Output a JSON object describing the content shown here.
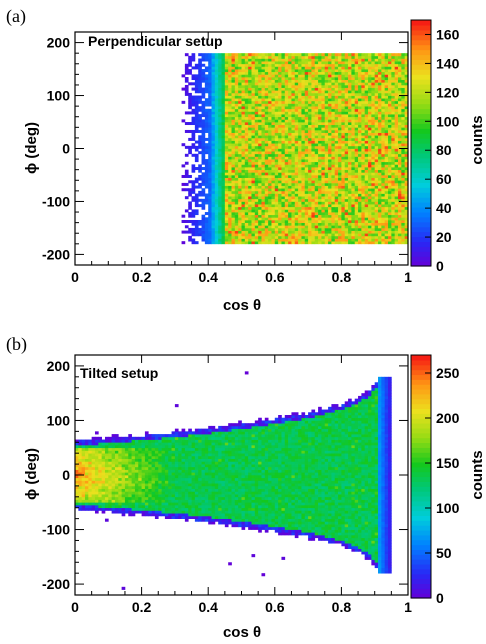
{
  "chart_data": [
    {
      "panel_label": "(a)",
      "type": "heatmap",
      "annotation": "Perpendicular setup",
      "xlabel": "cos θ",
      "ylabel": "ϕ (deg)",
      "xlim": [
        0,
        1
      ],
      "ylim": [
        -220,
        220
      ],
      "xticks": [
        "0",
        "0.2",
        "0.4",
        "0.6",
        "0.8",
        "1"
      ],
      "yticks": [
        "-200",
        "-100",
        "0",
        "100",
        "200"
      ],
      "colorbar": {
        "label": "counts",
        "range": [
          0,
          170
        ],
        "ticks": [
          "0",
          "20",
          "40",
          "60",
          "80",
          "100",
          "120",
          "140",
          "160"
        ]
      },
      "regions": [
        {
          "x": [
            0.32,
            0.41
          ],
          "y": [
            -180,
            180
          ],
          "counts": [
            0,
            30
          ],
          "note": "sparse low-count edge"
        },
        {
          "x": [
            0.41,
            0.45
          ],
          "y": [
            -180,
            180
          ],
          "counts": [
            40,
            90
          ]
        },
        {
          "x": [
            0.45,
            1.0
          ],
          "y": [
            -180,
            180
          ],
          "counts": [
            95,
            150
          ]
        }
      ]
    },
    {
      "panel_label": "(b)",
      "type": "heatmap",
      "annotation": "Tilted setup",
      "xlabel": "cos θ",
      "ylabel": "ϕ (deg)",
      "xlim": [
        0,
        1
      ],
      "ylim": [
        -220,
        220
      ],
      "xticks": [
        "0",
        "0.2",
        "0.4",
        "0.6",
        "0.8",
        "1"
      ],
      "yticks": [
        "-200",
        "-100",
        "0",
        "100",
        "200"
      ],
      "colorbar": {
        "label": "counts",
        "range": [
          0,
          270
        ],
        "ticks": [
          "0",
          "50",
          "100",
          "150",
          "200",
          "250"
        ]
      },
      "envelope": {
        "cos_theta": [
          0,
          0.1,
          0.2,
          0.3,
          0.4,
          0.5,
          0.6,
          0.7,
          0.8,
          0.85,
          0.88,
          0.9,
          0.92,
          1.0
        ],
        "phi_half_width": [
          62,
          67,
          72,
          78,
          85,
          93,
          102,
          113,
          128,
          140,
          152,
          165,
          180,
          180
        ]
      },
      "regions": [
        {
          "x": [
            0,
            0.3
          ],
          "y": [
            -50,
            50
          ],
          "counts": [
            200,
            260
          ],
          "note": "hot spot"
        },
        {
          "x": [
            0,
            0.95
          ],
          "y": "inside envelope",
          "counts": [
            120,
            150
          ]
        },
        {
          "x": [
            0,
            0.95
          ],
          "y": "envelope edge",
          "counts": [
            0,
            40
          ]
        }
      ]
    }
  ]
}
